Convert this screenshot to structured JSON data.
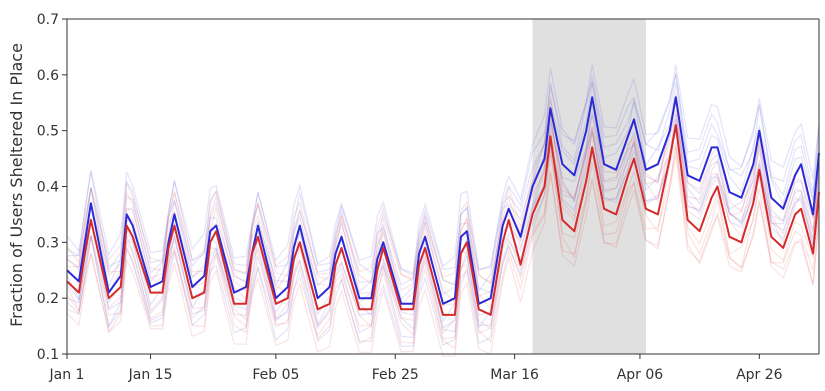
{
  "chart_data": {
    "type": "line",
    "title": "",
    "xlabel": "",
    "ylabel": "Fraction of Users Sheltered In Place",
    "x_range": [
      "2020-01-01",
      "2020-05-06"
    ],
    "ylim": [
      0.1,
      0.7
    ],
    "yticks": [
      0.1,
      0.2,
      0.3,
      0.4,
      0.5,
      0.6,
      0.7
    ],
    "yticks_labels": [
      "0.1",
      "0.2",
      "0.3",
      "0.4",
      "0.5",
      "0.6",
      "0.7"
    ],
    "xticks": [
      "2020-01-01",
      "2020-01-15",
      "2020-02-05",
      "2020-02-25",
      "2020-03-16",
      "2020-04-06",
      "2020-04-26"
    ],
    "xticks_labels": [
      "Jan 1",
      "Jan 15",
      "Feb 05",
      "Feb 25",
      "Mar 16",
      "Apr 06",
      "Apr 26"
    ],
    "shaded_region": {
      "start": "2020-03-19",
      "end": "2020-04-07",
      "color": "#e0e0e0"
    },
    "grid": false,
    "series": [
      {
        "color": "#2a2ad6",
        "x": [
          "2020-01-01",
          "2020-01-03",
          "2020-01-04",
          "2020-01-05",
          "2020-01-08",
          "2020-01-10",
          "2020-01-11",
          "2020-01-12",
          "2020-01-15",
          "2020-01-17",
          "2020-01-18",
          "2020-01-19",
          "2020-01-22",
          "2020-01-24",
          "2020-01-25",
          "2020-01-26",
          "2020-01-29",
          "2020-01-31",
          "2020-02-01",
          "2020-02-02",
          "2020-02-05",
          "2020-02-07",
          "2020-02-08",
          "2020-02-09",
          "2020-02-12",
          "2020-02-14",
          "2020-02-15",
          "2020-02-16",
          "2020-02-19",
          "2020-02-21",
          "2020-02-22",
          "2020-02-23",
          "2020-02-26",
          "2020-02-28",
          "2020-02-29",
          "2020-03-01",
          "2020-03-04",
          "2020-03-06",
          "2020-03-07",
          "2020-03-08",
          "2020-03-10",
          "2020-03-12",
          "2020-03-14",
          "2020-03-15",
          "2020-03-17",
          "2020-03-19",
          "2020-03-21",
          "2020-03-22",
          "2020-03-24",
          "2020-03-26",
          "2020-03-28",
          "2020-03-29",
          "2020-03-31",
          "2020-04-02",
          "2020-04-04",
          "2020-04-05",
          "2020-04-07",
          "2020-04-09",
          "2020-04-11",
          "2020-04-12",
          "2020-04-14",
          "2020-04-16",
          "2020-04-18",
          "2020-04-19",
          "2020-04-21",
          "2020-04-23",
          "2020-04-25",
          "2020-04-26",
          "2020-04-28",
          "2020-04-30",
          "2020-05-02",
          "2020-05-03",
          "2020-05-05",
          "2020-05-06"
        ],
        "values": [
          0.25,
          0.23,
          0.3,
          0.37,
          0.21,
          0.24,
          0.35,
          0.33,
          0.22,
          0.23,
          0.3,
          0.35,
          0.22,
          0.24,
          0.32,
          0.33,
          0.21,
          0.22,
          0.28,
          0.33,
          0.2,
          0.22,
          0.29,
          0.33,
          0.2,
          0.22,
          0.28,
          0.31,
          0.2,
          0.2,
          0.27,
          0.3,
          0.19,
          0.19,
          0.28,
          0.31,
          0.19,
          0.2,
          0.31,
          0.32,
          0.19,
          0.2,
          0.33,
          0.36,
          0.31,
          0.4,
          0.45,
          0.54,
          0.44,
          0.42,
          0.5,
          0.56,
          0.44,
          0.43,
          0.49,
          0.52,
          0.43,
          0.44,
          0.5,
          0.56,
          0.42,
          0.41,
          0.47,
          0.47,
          0.39,
          0.38,
          0.44,
          0.5,
          0.38,
          0.36,
          0.42,
          0.44,
          0.35,
          0.46
        ]
      },
      {
        "color": "#d62a2a",
        "x": [
          "2020-01-01",
          "2020-01-03",
          "2020-01-04",
          "2020-01-05",
          "2020-01-08",
          "2020-01-10",
          "2020-01-11",
          "2020-01-12",
          "2020-01-15",
          "2020-01-17",
          "2020-01-18",
          "2020-01-19",
          "2020-01-22",
          "2020-01-24",
          "2020-01-25",
          "2020-01-26",
          "2020-01-29",
          "2020-01-31",
          "2020-02-01",
          "2020-02-02",
          "2020-02-05",
          "2020-02-07",
          "2020-02-08",
          "2020-02-09",
          "2020-02-12",
          "2020-02-14",
          "2020-02-15",
          "2020-02-16",
          "2020-02-19",
          "2020-02-21",
          "2020-02-22",
          "2020-02-23",
          "2020-02-26",
          "2020-02-28",
          "2020-02-29",
          "2020-03-01",
          "2020-03-04",
          "2020-03-06",
          "2020-03-07",
          "2020-03-08",
          "2020-03-10",
          "2020-03-12",
          "2020-03-14",
          "2020-03-15",
          "2020-03-17",
          "2020-03-19",
          "2020-03-21",
          "2020-03-22",
          "2020-03-24",
          "2020-03-26",
          "2020-03-28",
          "2020-03-29",
          "2020-03-31",
          "2020-04-02",
          "2020-04-04",
          "2020-04-05",
          "2020-04-07",
          "2020-04-09",
          "2020-04-11",
          "2020-04-12",
          "2020-04-14",
          "2020-04-16",
          "2020-04-18",
          "2020-04-19",
          "2020-04-21",
          "2020-04-23",
          "2020-04-25",
          "2020-04-26",
          "2020-04-28",
          "2020-04-30",
          "2020-05-02",
          "2020-05-03",
          "2020-05-05",
          "2020-05-06"
        ],
        "values": [
          0.23,
          0.21,
          0.28,
          0.34,
          0.2,
          0.22,
          0.33,
          0.31,
          0.21,
          0.21,
          0.29,
          0.33,
          0.2,
          0.21,
          0.3,
          0.32,
          0.19,
          0.19,
          0.28,
          0.31,
          0.19,
          0.2,
          0.27,
          0.3,
          0.18,
          0.19,
          0.26,
          0.29,
          0.18,
          0.18,
          0.25,
          0.29,
          0.18,
          0.18,
          0.26,
          0.29,
          0.17,
          0.17,
          0.28,
          0.3,
          0.18,
          0.17,
          0.3,
          0.34,
          0.26,
          0.35,
          0.4,
          0.49,
          0.34,
          0.32,
          0.41,
          0.47,
          0.36,
          0.35,
          0.42,
          0.45,
          0.36,
          0.35,
          0.45,
          0.51,
          0.34,
          0.32,
          0.38,
          0.4,
          0.31,
          0.3,
          0.37,
          0.43,
          0.31,
          0.29,
          0.35,
          0.36,
          0.28,
          0.39
        ]
      }
    ]
  }
}
